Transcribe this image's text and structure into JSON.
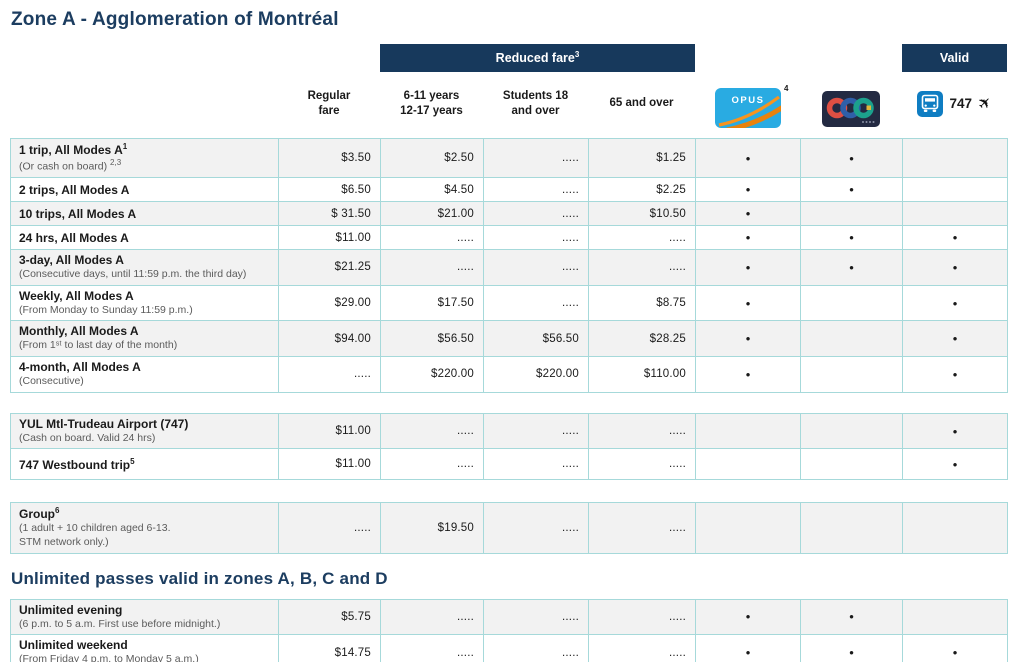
{
  "page": {
    "title": "Zone A - Agglomeration of Montréal",
    "unlimited_heading": "Unlimited passes valid in zones A, B, C and D"
  },
  "header": {
    "reduced_fare_label": "Reduced fare",
    "reduced_fare_sup": "3",
    "valid_label": "Valid",
    "col_regular": "Regular\nfare",
    "col_age": "6-11 years\n12-17 years",
    "col_students": "Students 18\nand over",
    "col_seniors": "65 and over",
    "opus_label": "OPUS",
    "opus_sup": "4",
    "bus_number": "747",
    "plane_glyph": "✈",
    "dot_glyph": "•"
  },
  "colors": {
    "navy": "#17395C",
    "title_navy": "#1C3D60",
    "border_teal": "#A6D9DA",
    "row_alt_gray": "#F2F2F2",
    "opus_blue": "#29ABE2",
    "opus_orange": "#F7941E",
    "card_navy": "#232A42",
    "ring_red": "#DE4F43",
    "ring_blue": "#2F5FA8",
    "ring_teal": "#1CA18D",
    "bus_blue": "#0F7DC2"
  },
  "tables": [
    {
      "id": "main",
      "rows": [
        {
          "label": "1 trip, All Modes A",
          "label_sup": "1",
          "sub": "(Or cash on board)",
          "sub_sup": "2,3",
          "fares": [
            "$3.50",
            "$2.50",
            ".....",
            "$1.25"
          ],
          "marks": [
            true,
            true,
            false
          ]
        },
        {
          "label": "2 trips, All Modes A",
          "fares": [
            "$6.50",
            "$4.50",
            ".....",
            "$2.25"
          ],
          "marks": [
            true,
            true,
            false
          ]
        },
        {
          "label": "10 trips, All Modes A",
          "fares": [
            "$ 31.50",
            "$21.00",
            ".....",
            "$10.50"
          ],
          "marks": [
            true,
            false,
            false
          ]
        },
        {
          "label": "24 hrs, All Modes A",
          "fares": [
            "$11.00",
            ".....",
            ".....",
            "....."
          ],
          "marks": [
            true,
            true,
            true
          ]
        },
        {
          "label": "3-day, All Modes A",
          "sub": "(Consecutive days, until 11:59 p.m. the third day)",
          "fares": [
            "$21.25",
            ".....",
            ".....",
            "....."
          ],
          "marks": [
            true,
            true,
            true
          ]
        },
        {
          "label": "Weekly, All Modes A",
          "sub": "(From Monday to Sunday 11:59 p.m.)",
          "fares": [
            "$29.00",
            "$17.50",
            ".....",
            "$8.75"
          ],
          "marks": [
            true,
            false,
            true
          ]
        },
        {
          "label": "Monthly, All Modes A",
          "sub": "(From 1ˢᵗ to last day of the month)",
          "fares": [
            "$94.00",
            "$56.50",
            "$56.50",
            "$28.25"
          ],
          "marks": [
            true,
            false,
            true
          ]
        },
        {
          "label": "4-month, All Modes A",
          "sub": "(Consecutive)",
          "fares": [
            ".....",
            "$220.00",
            "$220.00",
            "$110.00"
          ],
          "marks": [
            true,
            false,
            true
          ]
        }
      ]
    },
    {
      "id": "airport",
      "rows": [
        {
          "label": "YUL Mtl-Trudeau Airport (747)",
          "sub": "(Cash on board. Valid 24 hrs)",
          "fares": [
            "$11.00",
            ".....",
            ".....",
            "....."
          ],
          "marks": [
            false,
            false,
            true
          ]
        },
        {
          "label": "747 Westbound trip",
          "label_sup": "5",
          "fares": [
            "$11.00",
            ".....",
            ".....",
            "....."
          ],
          "marks": [
            false,
            false,
            true
          ]
        }
      ]
    },
    {
      "id": "group",
      "rows": [
        {
          "label": "Group",
          "label_sup": "6",
          "sub": "(1 adult + 10 children aged 6-13.\nSTM network only.)",
          "fares": [
            ".....",
            "$19.50",
            ".....",
            "....."
          ],
          "marks": [
            false,
            false,
            false
          ]
        }
      ]
    },
    {
      "id": "unlimited",
      "rows": [
        {
          "label": "Unlimited evening",
          "sub": "(6 p.m. to 5 a.m. First use before midnight.)",
          "fares": [
            "$5.75",
            ".....",
            ".....",
            "....."
          ],
          "marks": [
            true,
            true,
            false
          ]
        },
        {
          "label": "Unlimited weekend",
          "sub": "(From Friday 4 p.m. to Monday 5 a.m.)",
          "fares": [
            "$14.75",
            ".....",
            ".....",
            "....."
          ],
          "marks": [
            true,
            true,
            true
          ]
        }
      ]
    }
  ]
}
